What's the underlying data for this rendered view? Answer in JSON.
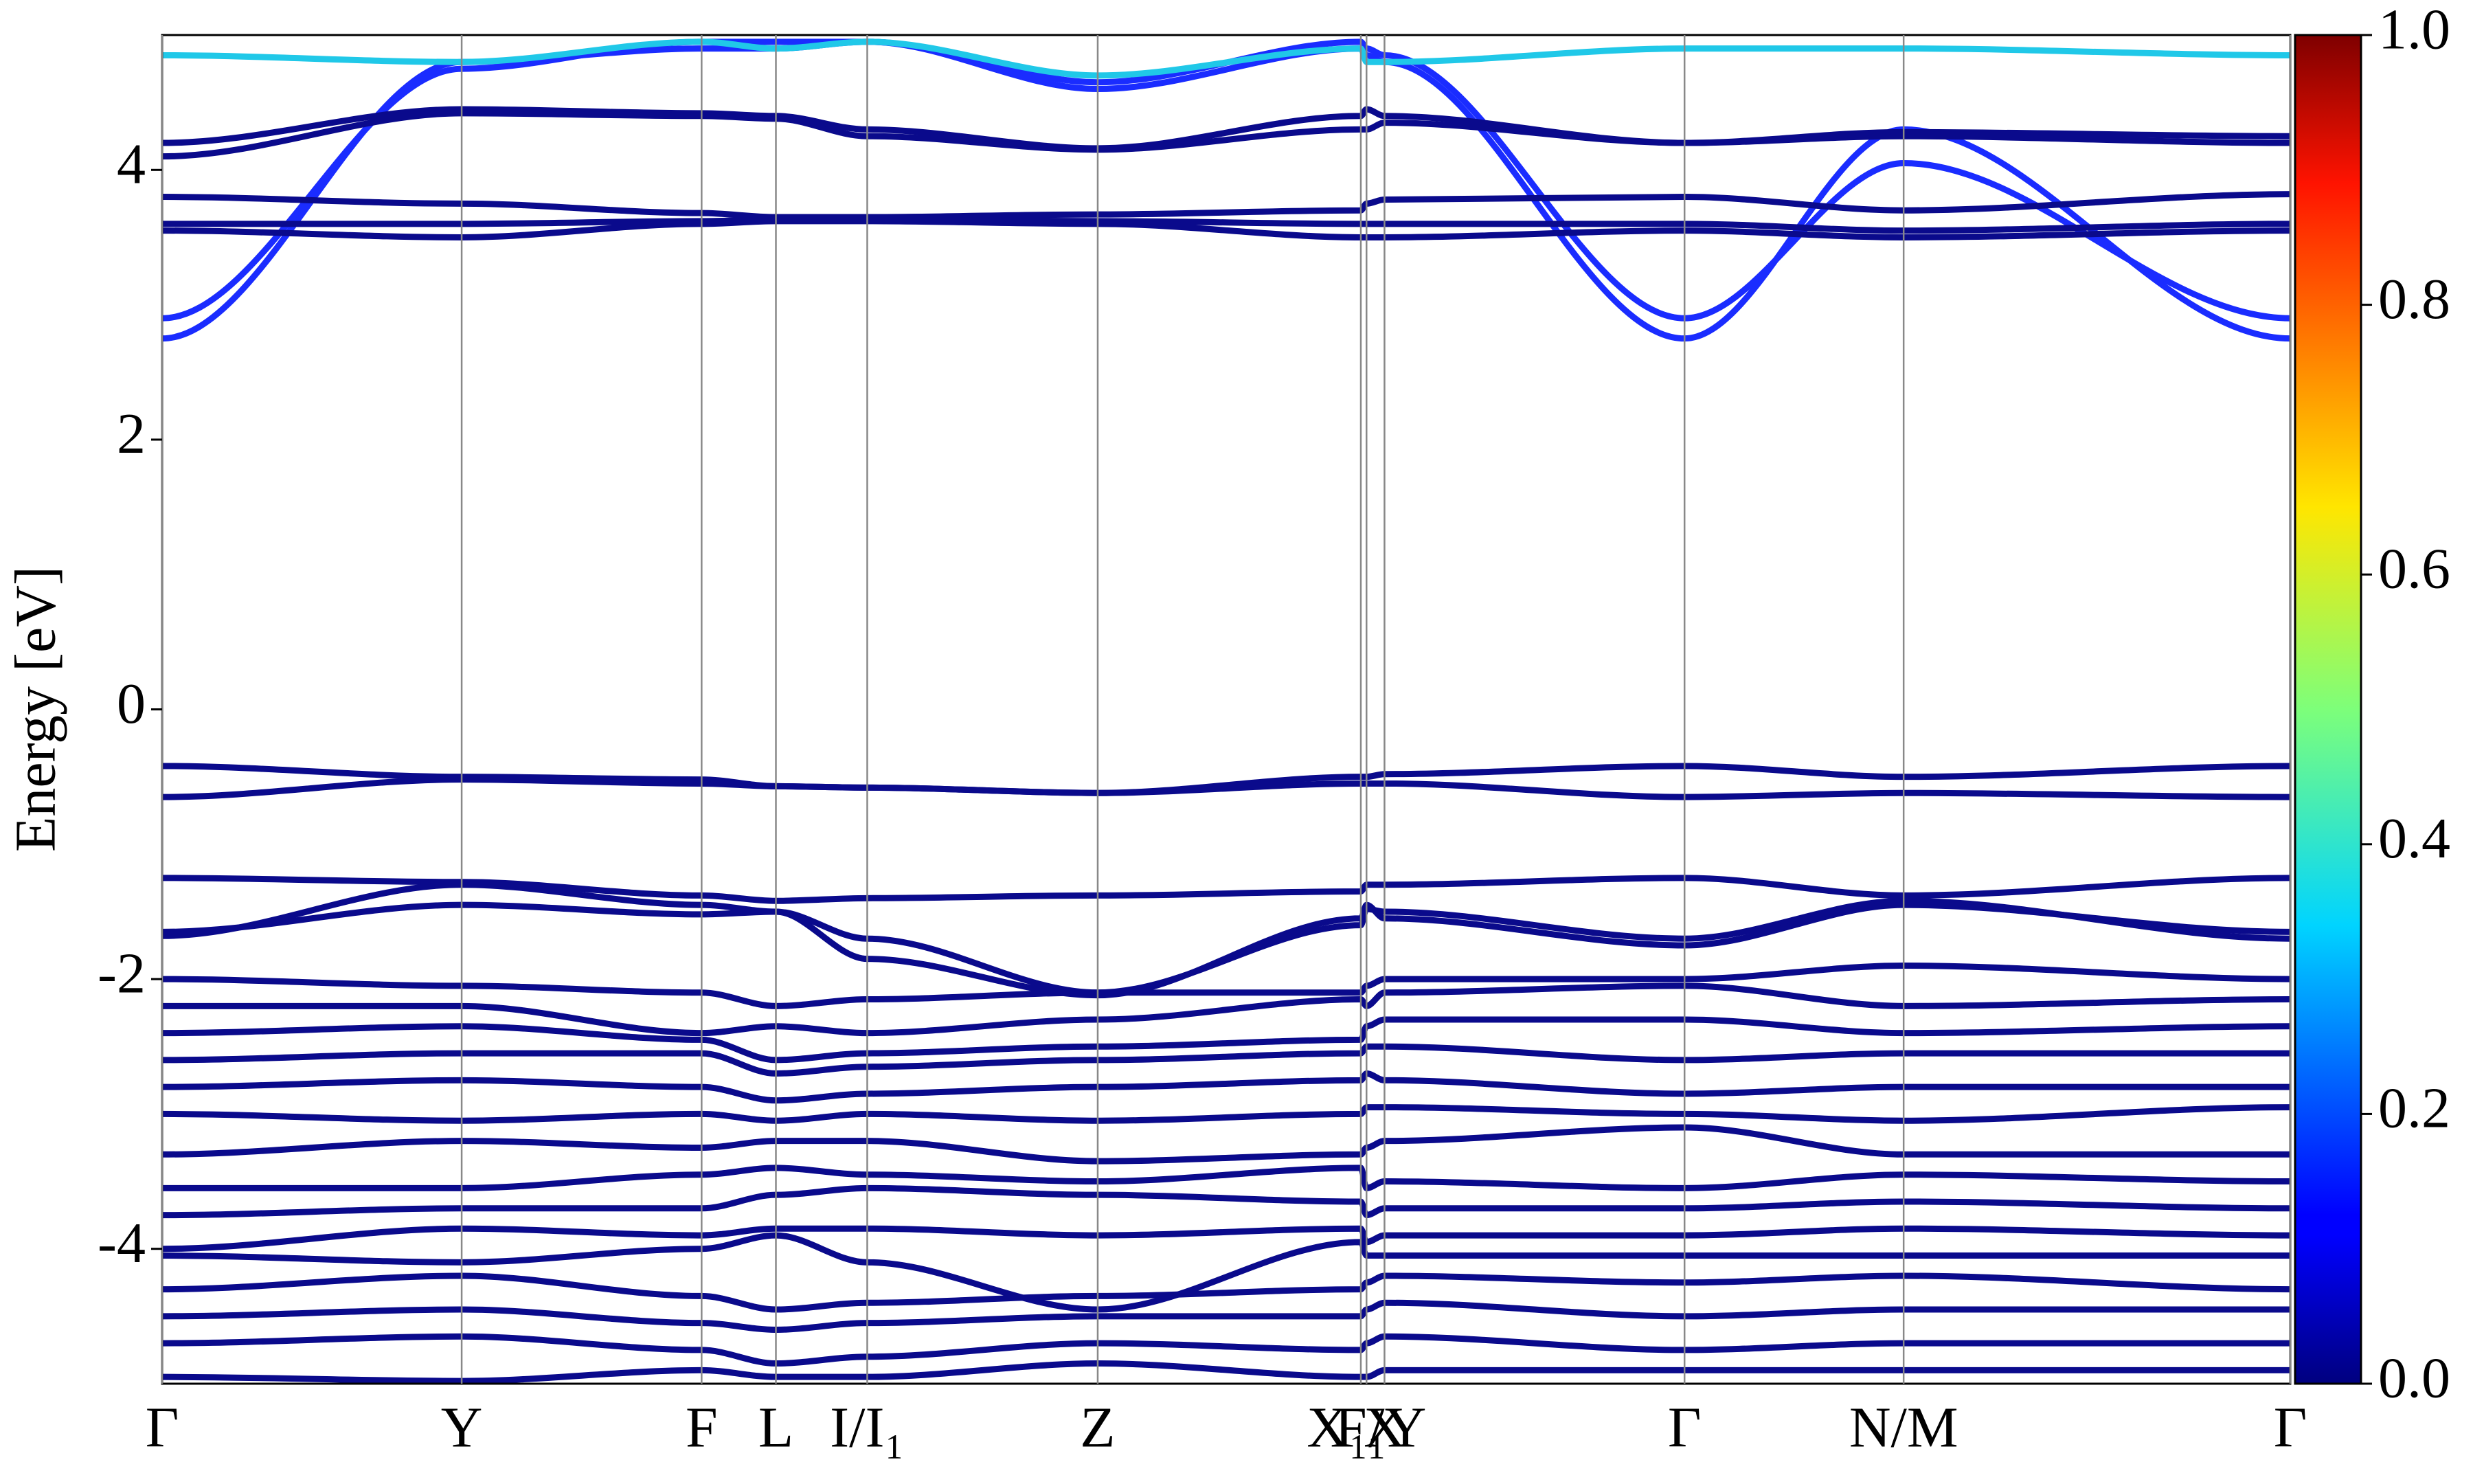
{
  "chart_data": {
    "type": "line",
    "y_label": "Energy [eV]",
    "x": [
      0,
      0.633,
      1.14,
      1.297,
      1.49,
      1.977,
      2.533,
      2.545,
      2.583,
      3.217,
      3.68,
      4.497
    ],
    "xlim": [
      0,
      4.497
    ],
    "xticks": [
      {
        "value": 0,
        "label": "Γ"
      },
      {
        "value": 0.633,
        "label": "Y"
      },
      {
        "value": 1.14,
        "label": "F"
      },
      {
        "value": 1.297,
        "label": "L"
      },
      {
        "value": 1.49,
        "label": "I/I₁"
      },
      {
        "value": 1.977,
        "label": "Z"
      },
      {
        "value": 2.533,
        "label": "F₁"
      },
      {
        "value": 2.545,
        "label": "X₁/Y"
      },
      {
        "value": 2.583,
        "label": "X"
      },
      {
        "value": 3.217,
        "label": "Γ"
      },
      {
        "value": 3.68,
        "label": "N/M"
      },
      {
        "value": 4.497,
        "label": "Γ"
      }
    ],
    "ylim": [
      -5,
      5
    ],
    "yticks": [
      -4,
      -2,
      0,
      2,
      4
    ],
    "colorbar": {
      "lim": [
        0,
        1
      ],
      "ticks": [
        {
          "value": 0,
          "label": "0.0"
        },
        {
          "value": 0.2,
          "label": "0.2"
        },
        {
          "value": 0.4,
          "label": "0.4"
        },
        {
          "value": 0.6,
          "label": "0.6"
        },
        {
          "value": 0.8,
          "label": "0.8"
        },
        {
          "value": 1,
          "label": "1.0"
        }
      ]
    },
    "series": [
      {
        "color": "#1a2cff",
        "values": [
          2.75,
          4.8,
          4.9,
          4.9,
          4.95,
          4.6,
          4.9,
          4.85,
          4.8,
          2.75,
          4.3,
          2.75
        ]
      },
      {
        "color": "#1a2cff",
        "values": [
          2.9,
          4.75,
          4.95,
          4.95,
          4.95,
          4.65,
          4.95,
          4.9,
          4.85,
          2.9,
          4.05,
          2.9
        ]
      },
      {
        "color": "#20c8e8",
        "values": [
          4.85,
          4.8,
          4.95,
          4.9,
          4.95,
          4.7,
          4.9,
          4.8,
          4.8,
          4.9,
          4.9,
          4.85
        ]
      },
      {
        "color": "#0a0a8c",
        "values": [
          3.55,
          3.5,
          3.6,
          3.62,
          3.62,
          3.6,
          3.5,
          3.5,
          3.5,
          3.55,
          3.5,
          3.55
        ]
      },
      {
        "color": "#0a0a8c",
        "values": [
          3.6,
          3.6,
          3.62,
          3.63,
          3.63,
          3.62,
          3.6,
          3.6,
          3.6,
          3.6,
          3.55,
          3.6
        ]
      },
      {
        "color": "#0a0a8c",
        "values": [
          3.8,
          3.75,
          3.68,
          3.65,
          3.65,
          3.67,
          3.7,
          3.75,
          3.78,
          3.8,
          3.7,
          3.82
        ]
      },
      {
        "color": "#0a0a8c",
        "values": [
          4.1,
          4.42,
          4.4,
          4.38,
          4.25,
          4.15,
          4.3,
          4.3,
          4.35,
          4.2,
          4.25,
          4.2
        ]
      },
      {
        "color": "#0a0a8c",
        "values": [
          4.2,
          4.45,
          4.42,
          4.4,
          4.3,
          4.16,
          4.4,
          4.45,
          4.4,
          4.2,
          4.28,
          4.25
        ]
      },
      {
        "color": "#0a0a8c",
        "values": [
          -0.42,
          -0.5,
          -0.52,
          -0.57,
          -0.58,
          -0.62,
          -0.5,
          -0.5,
          -0.48,
          -0.42,
          -0.5,
          -0.42
        ]
      },
      {
        "color": "#0a0a8c",
        "values": [
          -0.65,
          -0.52,
          -0.55,
          -0.57,
          -0.58,
          -0.62,
          -0.55,
          -0.55,
          -0.55,
          -0.65,
          -0.62,
          -0.65
        ]
      },
      {
        "color": "#0a0a8c",
        "values": [
          -1.25,
          -1.28,
          -1.38,
          -1.42,
          -1.4,
          -1.38,
          -1.35,
          -1.3,
          -1.3,
          -1.25,
          -1.38,
          -1.25
        ]
      },
      {
        "color": "#0a0a8c",
        "values": [
          -1.65,
          -1.45,
          -1.52,
          -1.5,
          -1.7,
          -2.1,
          -1.6,
          -1.48,
          -1.5,
          -1.7,
          -1.42,
          -1.7
        ]
      },
      {
        "color": "#0a0a8c",
        "values": [
          -1.68,
          -1.3,
          -1.45,
          -1.5,
          -1.85,
          -2.12,
          -1.55,
          -1.45,
          -1.55,
          -1.75,
          -1.45,
          -1.65
        ]
      },
      {
        "color": "#0a0a8c",
        "values": [
          -2.0,
          -2.05,
          -2.1,
          -2.2,
          -2.15,
          -2.1,
          -2.1,
          -2.05,
          -2.0,
          -2.0,
          -1.9,
          -2.0
        ]
      },
      {
        "color": "#0a0a8c",
        "values": [
          -2.2,
          -2.2,
          -2.4,
          -2.35,
          -2.4,
          -2.3,
          -2.15,
          -2.2,
          -2.1,
          -2.05,
          -2.2,
          -2.15
        ]
      },
      {
        "color": "#0a0a8c",
        "values": [
          -2.4,
          -2.35,
          -2.45,
          -2.6,
          -2.55,
          -2.5,
          -2.45,
          -2.35,
          -2.3,
          -2.3,
          -2.4,
          -2.35
        ]
      },
      {
        "color": "#0a0a8c",
        "values": [
          -2.6,
          -2.55,
          -2.55,
          -2.7,
          -2.65,
          -2.6,
          -2.55,
          -2.5,
          -2.5,
          -2.6,
          -2.55,
          -2.55
        ]
      },
      {
        "color": "#0a0a8c",
        "values": [
          -2.8,
          -2.75,
          -2.8,
          -2.9,
          -2.85,
          -2.8,
          -2.75,
          -2.7,
          -2.75,
          -2.85,
          -2.8,
          -2.8
        ]
      },
      {
        "color": "#0a0a8c",
        "values": [
          -3.0,
          -3.05,
          -3.0,
          -3.05,
          -3.0,
          -3.05,
          -3.0,
          -2.95,
          -2.95,
          -3.0,
          -3.05,
          -2.95
        ]
      },
      {
        "color": "#0a0a8c",
        "values": [
          -3.3,
          -3.2,
          -3.25,
          -3.2,
          -3.2,
          -3.35,
          -3.3,
          -3.25,
          -3.2,
          -3.1,
          -3.3,
          -3.3
        ]
      },
      {
        "color": "#0a0a8c",
        "values": [
          -3.55,
          -3.55,
          -3.45,
          -3.4,
          -3.45,
          -3.5,
          -3.4,
          -3.55,
          -3.5,
          -3.55,
          -3.45,
          -3.5
        ]
      },
      {
        "color": "#0a0a8c",
        "values": [
          -3.75,
          -3.7,
          -3.7,
          -3.6,
          -3.55,
          -3.6,
          -3.65,
          -3.75,
          -3.7,
          -3.7,
          -3.65,
          -3.7
        ]
      },
      {
        "color": "#0a0a8c",
        "values": [
          -4.0,
          -3.85,
          -3.9,
          -3.85,
          -3.85,
          -3.9,
          -3.85,
          -3.95,
          -3.9,
          -3.9,
          -3.85,
          -3.9
        ]
      },
      {
        "color": "#0a0a8c",
        "values": [
          -4.05,
          -4.1,
          -4.0,
          -3.9,
          -4.1,
          -4.45,
          -3.95,
          -4.05,
          -4.05,
          -4.05,
          -4.05,
          -4.05
        ]
      },
      {
        "color": "#0a0a8c",
        "values": [
          -4.3,
          -4.2,
          -4.35,
          -4.45,
          -4.4,
          -4.35,
          -4.3,
          -4.25,
          -4.2,
          -4.25,
          -4.2,
          -4.3
        ]
      },
      {
        "color": "#0a0a8c",
        "values": [
          -4.5,
          -4.45,
          -4.55,
          -4.6,
          -4.55,
          -4.5,
          -4.5,
          -4.45,
          -4.4,
          -4.5,
          -4.45,
          -4.45
        ]
      },
      {
        "color": "#0a0a8c",
        "values": [
          -4.7,
          -4.65,
          -4.75,
          -4.85,
          -4.8,
          -4.7,
          -4.75,
          -4.7,
          -4.65,
          -4.75,
          -4.7,
          -4.7
        ]
      },
      {
        "color": "#0a0a8c",
        "values": [
          -4.95,
          -4.98,
          -4.9,
          -4.95,
          -4.95,
          -4.85,
          -4.95,
          -4.95,
          -4.9,
          -4.9,
          -4.9,
          -4.9
        ]
      }
    ]
  }
}
